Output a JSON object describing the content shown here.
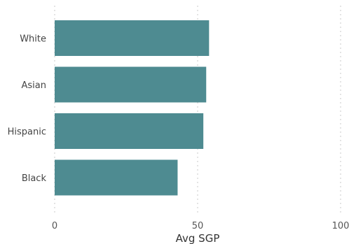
{
  "chart_data": {
    "type": "bar",
    "orientation": "horizontal",
    "categories": [
      "White",
      "Asian",
      "Hispanic",
      "Black"
    ],
    "values": [
      54,
      53,
      52,
      43
    ],
    "xlabel": "Avg SGP",
    "xlim": [
      0,
      100
    ],
    "xticks": [
      "0",
      "50",
      "100"
    ],
    "grid": "vertical dotted",
    "colors": {
      "bar": "#4e8b91",
      "grid": "#c8c8c8"
    }
  }
}
